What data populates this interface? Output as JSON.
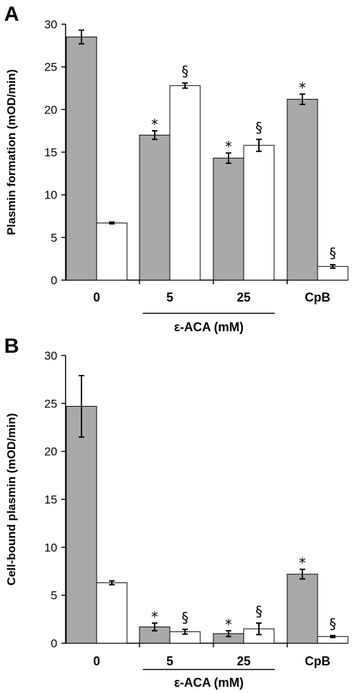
{
  "chart_data": [
    {
      "type": "bar",
      "panel": "A",
      "ylabel": "Plasmin formation (mOD/min)",
      "ylim": [
        0,
        30
      ],
      "yticks": [
        "0",
        "5",
        "10",
        "15",
        "20",
        "25",
        "30"
      ],
      "categories": [
        "0",
        "5",
        "25",
        "CpB"
      ],
      "group_label": "ε-ACA (mM)",
      "series": [
        {
          "color": "#a9a9a9",
          "values": [
            28.5,
            17.0,
            14.3,
            21.2
          ],
          "errors": [
            0.8,
            0.5,
            0.6,
            0.6
          ],
          "marks": [
            "",
            "*",
            "*",
            "*"
          ]
        },
        {
          "color": "#ffffff",
          "values": [
            6.7,
            22.8,
            15.8,
            1.6
          ],
          "errors": [
            0.1,
            0.3,
            0.7,
            0.2
          ],
          "marks": [
            "",
            "§",
            "§",
            "§"
          ]
        }
      ]
    },
    {
      "type": "bar",
      "panel": "B",
      "ylabel": "Cell-bound plasmin (mOD/min)",
      "ylim": [
        0,
        30
      ],
      "yticks": [
        "0",
        "5",
        "10",
        "15",
        "20",
        "25",
        "30"
      ],
      "categories": [
        "0",
        "5",
        "25",
        "CpB"
      ],
      "group_label": "ε-ACA (mM)",
      "series": [
        {
          "color": "#a9a9a9",
          "values": [
            24.7,
            1.7,
            1.0,
            7.2
          ],
          "errors": [
            3.2,
            0.4,
            0.3,
            0.5
          ],
          "marks": [
            "",
            "*",
            "*",
            "*"
          ]
        },
        {
          "color": "#ffffff",
          "values": [
            6.3,
            1.2,
            1.5,
            0.7
          ],
          "errors": [
            0.2,
            0.25,
            0.6,
            0.1
          ],
          "marks": [
            "",
            "§",
            "§",
            "§"
          ]
        }
      ]
    }
  ]
}
